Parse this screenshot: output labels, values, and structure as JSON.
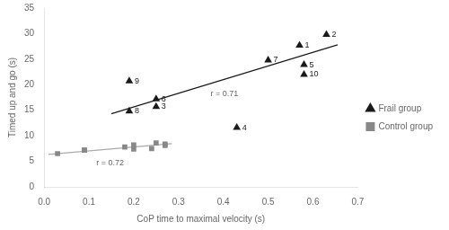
{
  "chart_data": {
    "type": "scatter",
    "xlabel": "CoP time to maximal velocity (s)",
    "ylabel": "Timed up and go (s)",
    "xlim": [
      0,
      0.7
    ],
    "ylim": [
      0,
      35
    ],
    "xticks": [
      {
        "value": 0,
        "label": "0.0"
      },
      0.1,
      0.2,
      0.3,
      0.4,
      0.5,
      0.6,
      0.7
    ],
    "yticks": [
      0,
      5,
      10,
      15,
      20,
      25,
      30,
      35
    ],
    "grid": false,
    "legend": "right",
    "series": [
      {
        "name": "Frail group",
        "color": "#1a1a1a",
        "marker": "triangle",
        "x": [
          0.19,
          0.19,
          0.25,
          0.43,
          0.57,
          0.25,
          0.5,
          0.58,
          0.63,
          0.58
        ],
        "values": [
          14.8,
          20.7,
          17.2,
          11.6,
          27.7,
          15.7,
          24.8,
          23.9,
          29.8,
          22.0
        ],
        "labels": [
          "8",
          "9",
          "6",
          "4",
          "1",
          "3",
          "7",
          "5",
          "2",
          "10"
        ]
      },
      {
        "name": "Control group",
        "color": "#888888",
        "marker": "square",
        "x": [
          0.03,
          0.09,
          0.09,
          0.18,
          0.2,
          0.2,
          0.24,
          0.25,
          0.27,
          0.27
        ],
        "values": [
          6.5,
          7.2,
          7.2,
          7.8,
          8.2,
          7.4,
          7.5,
          8.6,
          8.4,
          8.1
        ]
      },
      {
        "type": "line",
        "color": "#1a1a1a",
        "x": [
          0.15,
          0.655
        ],
        "values": [
          14.3,
          27.8
        ],
        "annotation": "r = 0.71"
      },
      {
        "type": "line",
        "color": "#aaaaaa",
        "x": [
          0.01,
          0.285
        ],
        "values": [
          6.35,
          8.45
        ],
        "annotation": "r = 0.72"
      }
    ]
  }
}
